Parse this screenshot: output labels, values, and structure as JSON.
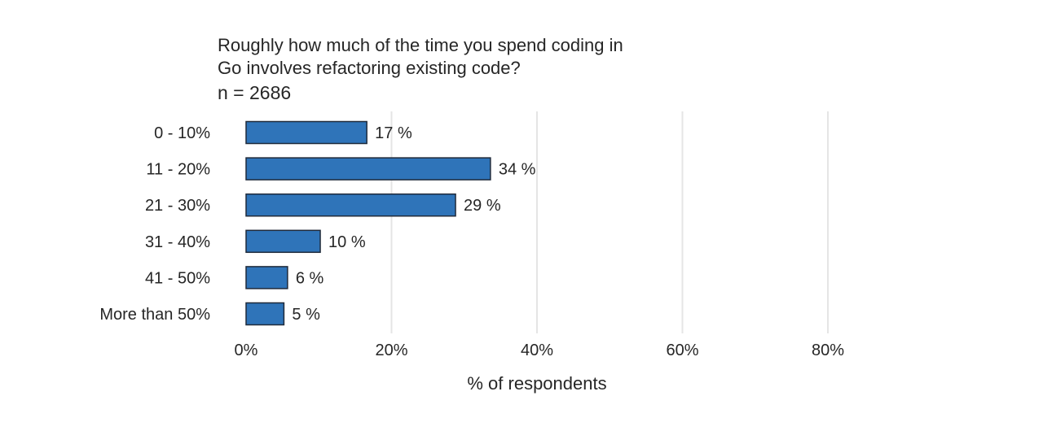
{
  "chart_data": {
    "type": "bar",
    "orientation": "horizontal",
    "title_lines": [
      "Roughly how much of the time you spend coding in",
      "Go involves refactoring existing code?"
    ],
    "subtitle": "n = 2686",
    "categories": [
      "0 - 10%",
      "11 - 20%",
      "21 - 30%",
      "31 - 40%",
      "41 - 50%",
      "More than 50%"
    ],
    "values": [
      16.6,
      33.6,
      28.8,
      10.2,
      5.7,
      5.2
    ],
    "value_labels": [
      "17 %",
      "34 %",
      "29 %",
      "10 %",
      "6 %",
      "5 %"
    ],
    "xlabel": "% of respondents",
    "xlim": [
      0,
      80
    ],
    "xticks": [
      0,
      20,
      40,
      60,
      80
    ],
    "xtick_labels": [
      "0%",
      "20%",
      "40%",
      "60%",
      "80%"
    ],
    "grid": "vertical",
    "bar_color": "#2f74b9",
    "bar_edge_color": "#1f2a3a",
    "grid_color": "#e5e5e5"
  }
}
